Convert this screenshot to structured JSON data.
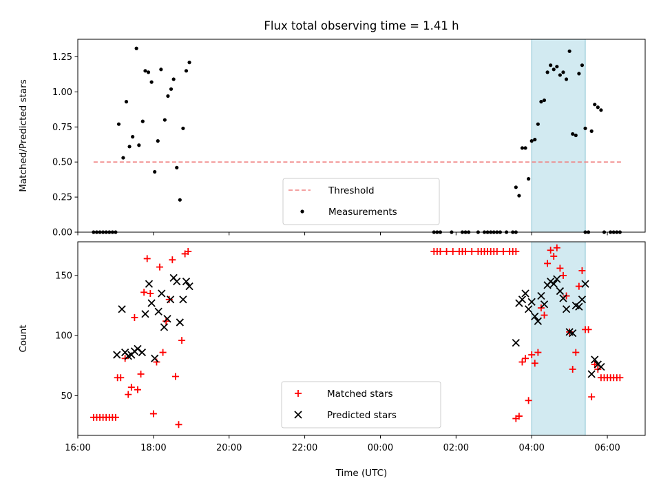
{
  "chart_data": [
    {
      "type": "scatter",
      "title": "Flux total observing time = 1.41 h",
      "xlabel": "",
      "ylabel": "Matched/Predicted stars",
      "xlim": [
        "16:00",
        "07:00"
      ],
      "ylim": [
        0,
        1.375
      ],
      "grid": false,
      "legend_position": "bottom-center",
      "xticks": [
        "16:00",
        "18:00",
        "20:00",
        "22:00",
        "00:00",
        "02:00",
        "04:00",
        "06:00"
      ],
      "show_xtick_labels": false,
      "yticks": [
        "0.00",
        "0.25",
        "0.50",
        "0.75",
        "1.00",
        "1.25"
      ],
      "shaded_region": {
        "x": [
          "04:00",
          "05:25"
        ],
        "color": "#add8e6"
      },
      "threshold": {
        "name": "Threshold",
        "y": 0.5,
        "x": [
          "16:25",
          "06:25"
        ],
        "color": "#f08080",
        "style": "dashed"
      },
      "series": [
        {
          "name": "Measurements",
          "color": "#000000",
          "marker": "dot",
          "points": [
            [
              "16:25",
              0
            ],
            [
              "16:30",
              0
            ],
            [
              "16:35",
              0
            ],
            [
              "16:40",
              0
            ],
            [
              "16:45",
              0
            ],
            [
              "16:50",
              0
            ],
            [
              "16:55",
              0
            ],
            [
              "17:00",
              0
            ],
            [
              "17:05",
              0.77
            ],
            [
              "17:12",
              0.53
            ],
            [
              "17:17",
              0.93
            ],
            [
              "17:22",
              0.61
            ],
            [
              "17:27",
              0.68
            ],
            [
              "17:33",
              1.31
            ],
            [
              "17:37",
              0.62
            ],
            [
              "17:43",
              0.79
            ],
            [
              "17:47",
              1.15
            ],
            [
              "17:52",
              1.14
            ],
            [
              "17:57",
              1.07
            ],
            [
              "18:02",
              0.43
            ],
            [
              "18:07",
              0.65
            ],
            [
              "18:12",
              1.16
            ],
            [
              "18:18",
              0.8
            ],
            [
              "18:23",
              0.97
            ],
            [
              "18:28",
              1.02
            ],
            [
              "18:32",
              1.09
            ],
            [
              "18:37",
              0.46
            ],
            [
              "18:42",
              0.23
            ],
            [
              "18:47",
              0.74
            ],
            [
              "18:52",
              1.15
            ],
            [
              "18:57",
              1.21
            ],
            [
              "01:25",
              0
            ],
            [
              "01:30",
              0
            ],
            [
              "01:35",
              0
            ],
            [
              "01:53",
              0
            ],
            [
              "02:10",
              0
            ],
            [
              "02:15",
              0
            ],
            [
              "02:20",
              0
            ],
            [
              "02:35",
              0
            ],
            [
              "02:45",
              0
            ],
            [
              "02:50",
              0
            ],
            [
              "02:55",
              0
            ],
            [
              "03:00",
              0
            ],
            [
              "03:05",
              0
            ],
            [
              "03:10",
              0
            ],
            [
              "03:20",
              0
            ],
            [
              "03:30",
              0
            ],
            [
              "03:35",
              0
            ],
            [
              "03:35",
              0.32
            ],
            [
              "03:40",
              0.26
            ],
            [
              "03:45",
              0.6
            ],
            [
              "03:50",
              0.6
            ],
            [
              "03:55",
              0.38
            ],
            [
              "04:00",
              0.65
            ],
            [
              "04:05",
              0.66
            ],
            [
              "04:10",
              0.77
            ],
            [
              "04:15",
              0.93
            ],
            [
              "04:20",
              0.94
            ],
            [
              "04:25",
              1.14
            ],
            [
              "04:30",
              1.19
            ],
            [
              "04:35",
              1.16
            ],
            [
              "04:40",
              1.18
            ],
            [
              "04:45",
              1.12
            ],
            [
              "04:50",
              1.14
            ],
            [
              "04:55",
              1.09
            ],
            [
              "05:00",
              1.29
            ],
            [
              "05:05",
              0.7
            ],
            [
              "05:10",
              0.69
            ],
            [
              "05:15",
              1.13
            ],
            [
              "05:20",
              1.19
            ],
            [
              "05:25",
              0.74
            ],
            [
              "05:25",
              0
            ],
            [
              "05:30",
              0
            ],
            [
              "05:35",
              0.72
            ],
            [
              "05:40",
              0.91
            ],
            [
              "05:45",
              0.89
            ],
            [
              "05:50",
              0.87
            ],
            [
              "05:55",
              0
            ],
            [
              "06:05",
              0
            ],
            [
              "06:10",
              0
            ],
            [
              "06:15",
              0
            ],
            [
              "06:20",
              0
            ]
          ]
        }
      ]
    },
    {
      "type": "scatter",
      "title": "",
      "xlabel": "Time (UTC)",
      "ylabel": "Count",
      "xlim": [
        "16:00",
        "07:00"
      ],
      "ylim": [
        17,
        178
      ],
      "grid": false,
      "legend_position": "bottom-center",
      "xticks": [
        "16:00",
        "18:00",
        "20:00",
        "22:00",
        "00:00",
        "02:00",
        "04:00",
        "06:00"
      ],
      "yticks": [
        "50",
        "100",
        "150"
      ],
      "shaded_region": {
        "x": [
          "04:00",
          "05:25"
        ],
        "color": "#add8e6"
      },
      "series": [
        {
          "name": "Matched stars",
          "color": "#ff0000",
          "marker": "plus",
          "points": [
            [
              "16:25",
              32
            ],
            [
              "16:30",
              32
            ],
            [
              "16:35",
              32
            ],
            [
              "16:40",
              32
            ],
            [
              "16:45",
              32
            ],
            [
              "16:50",
              32
            ],
            [
              "16:55",
              32
            ],
            [
              "17:00",
              32
            ],
            [
              "17:03",
              65
            ],
            [
              "17:08",
              65
            ],
            [
              "17:15",
              81
            ],
            [
              "17:20",
              51
            ],
            [
              "17:25",
              57
            ],
            [
              "17:30",
              115
            ],
            [
              "17:35",
              55
            ],
            [
              "17:40",
              68
            ],
            [
              "17:45",
              136
            ],
            [
              "17:50",
              164
            ],
            [
              "17:55",
              135
            ],
            [
              "18:00",
              35
            ],
            [
              "18:05",
              78
            ],
            [
              "18:10",
              157
            ],
            [
              "18:15",
              86
            ],
            [
              "18:20",
              112
            ],
            [
              "18:25",
              130
            ],
            [
              "18:30",
              163
            ],
            [
              "18:35",
              66
            ],
            [
              "18:40",
              26
            ],
            [
              "18:45",
              96
            ],
            [
              "18:50",
              168
            ],
            [
              "18:55",
              170
            ],
            [
              "01:25",
              170
            ],
            [
              "01:30",
              170
            ],
            [
              "01:35",
              170
            ],
            [
              "01:45",
              170
            ],
            [
              "01:55",
              170
            ],
            [
              "02:05",
              170
            ],
            [
              "02:10",
              170
            ],
            [
              "02:15",
              170
            ],
            [
              "02:25",
              170
            ],
            [
              "02:35",
              170
            ],
            [
              "02:40",
              170
            ],
            [
              "02:45",
              170
            ],
            [
              "02:50",
              170
            ],
            [
              "02:55",
              170
            ],
            [
              "03:00",
              170
            ],
            [
              "03:05",
              170
            ],
            [
              "03:15",
              170
            ],
            [
              "03:25",
              170
            ],
            [
              "03:30",
              170
            ],
            [
              "03:35",
              170
            ],
            [
              "03:35",
              31
            ],
            [
              "03:40",
              33
            ],
            [
              "03:45",
              78
            ],
            [
              "03:50",
              81
            ],
            [
              "03:55",
              46
            ],
            [
              "04:00",
              84
            ],
            [
              "04:05",
              77
            ],
            [
              "04:10",
              86
            ],
            [
              "04:15",
              123
            ],
            [
              "04:20",
              117
            ],
            [
              "04:25",
              160
            ],
            [
              "04:30",
              171
            ],
            [
              "04:35",
              166
            ],
            [
              "04:40",
              173
            ],
            [
              "04:45",
              156
            ],
            [
              "04:50",
              150
            ],
            [
              "04:55",
              133
            ],
            [
              "05:00",
              103
            ],
            [
              "05:05",
              72
            ],
            [
              "05:10",
              86
            ],
            [
              "05:15",
              141
            ],
            [
              "05:20",
              154
            ],
            [
              "05:25",
              105
            ],
            [
              "05:30",
              105
            ],
            [
              "05:35",
              49
            ],
            [
              "05:40",
              76
            ],
            [
              "05:45",
              72
            ],
            [
              "05:50",
              65
            ],
            [
              "05:55",
              65
            ],
            [
              "06:00",
              65
            ],
            [
              "06:05",
              65
            ],
            [
              "06:10",
              65
            ],
            [
              "06:15",
              65
            ],
            [
              "06:20",
              65
            ]
          ]
        },
        {
          "name": "Predicted stars",
          "color": "#000000",
          "marker": "x",
          "points": [
            [
              "17:02",
              84
            ],
            [
              "17:10",
              122
            ],
            [
              "17:15",
              86
            ],
            [
              "17:20",
              83
            ],
            [
              "17:25",
              84
            ],
            [
              "17:30",
              87
            ],
            [
              "17:35",
              89
            ],
            [
              "17:42",
              86
            ],
            [
              "17:47",
              118
            ],
            [
              "17:53",
              143
            ],
            [
              "17:57",
              127
            ],
            [
              "18:02",
              81
            ],
            [
              "18:08",
              120
            ],
            [
              "18:13",
              135
            ],
            [
              "18:17",
              107
            ],
            [
              "18:22",
              114
            ],
            [
              "18:27",
              130
            ],
            [
              "18:32",
              148
            ],
            [
              "18:37",
              145
            ],
            [
              "18:42",
              111
            ],
            [
              "18:47",
              130
            ],
            [
              "18:52",
              145
            ],
            [
              "18:57",
              141
            ],
            [
              "03:35",
              94
            ],
            [
              "03:40",
              127
            ],
            [
              "03:45",
              130
            ],
            [
              "03:50",
              135
            ],
            [
              "03:55",
              122
            ],
            [
              "04:00",
              128
            ],
            [
              "04:05",
              116
            ],
            [
              "04:10",
              112
            ],
            [
              "04:15",
              133
            ],
            [
              "04:20",
              126
            ],
            [
              "04:25",
              142
            ],
            [
              "04:30",
              145
            ],
            [
              "04:35",
              143
            ],
            [
              "04:40",
              147
            ],
            [
              "04:45",
              137
            ],
            [
              "04:50",
              131
            ],
            [
              "04:55",
              122
            ],
            [
              "05:00",
              103
            ],
            [
              "05:05",
              102
            ],
            [
              "05:10",
              125
            ],
            [
              "05:15",
              124
            ],
            [
              "05:20",
              130
            ],
            [
              "05:25",
              143
            ],
            [
              "05:35",
              68
            ],
            [
              "05:40",
              80
            ],
            [
              "05:45",
              76
            ],
            [
              "05:50",
              74
            ]
          ]
        }
      ]
    }
  ]
}
